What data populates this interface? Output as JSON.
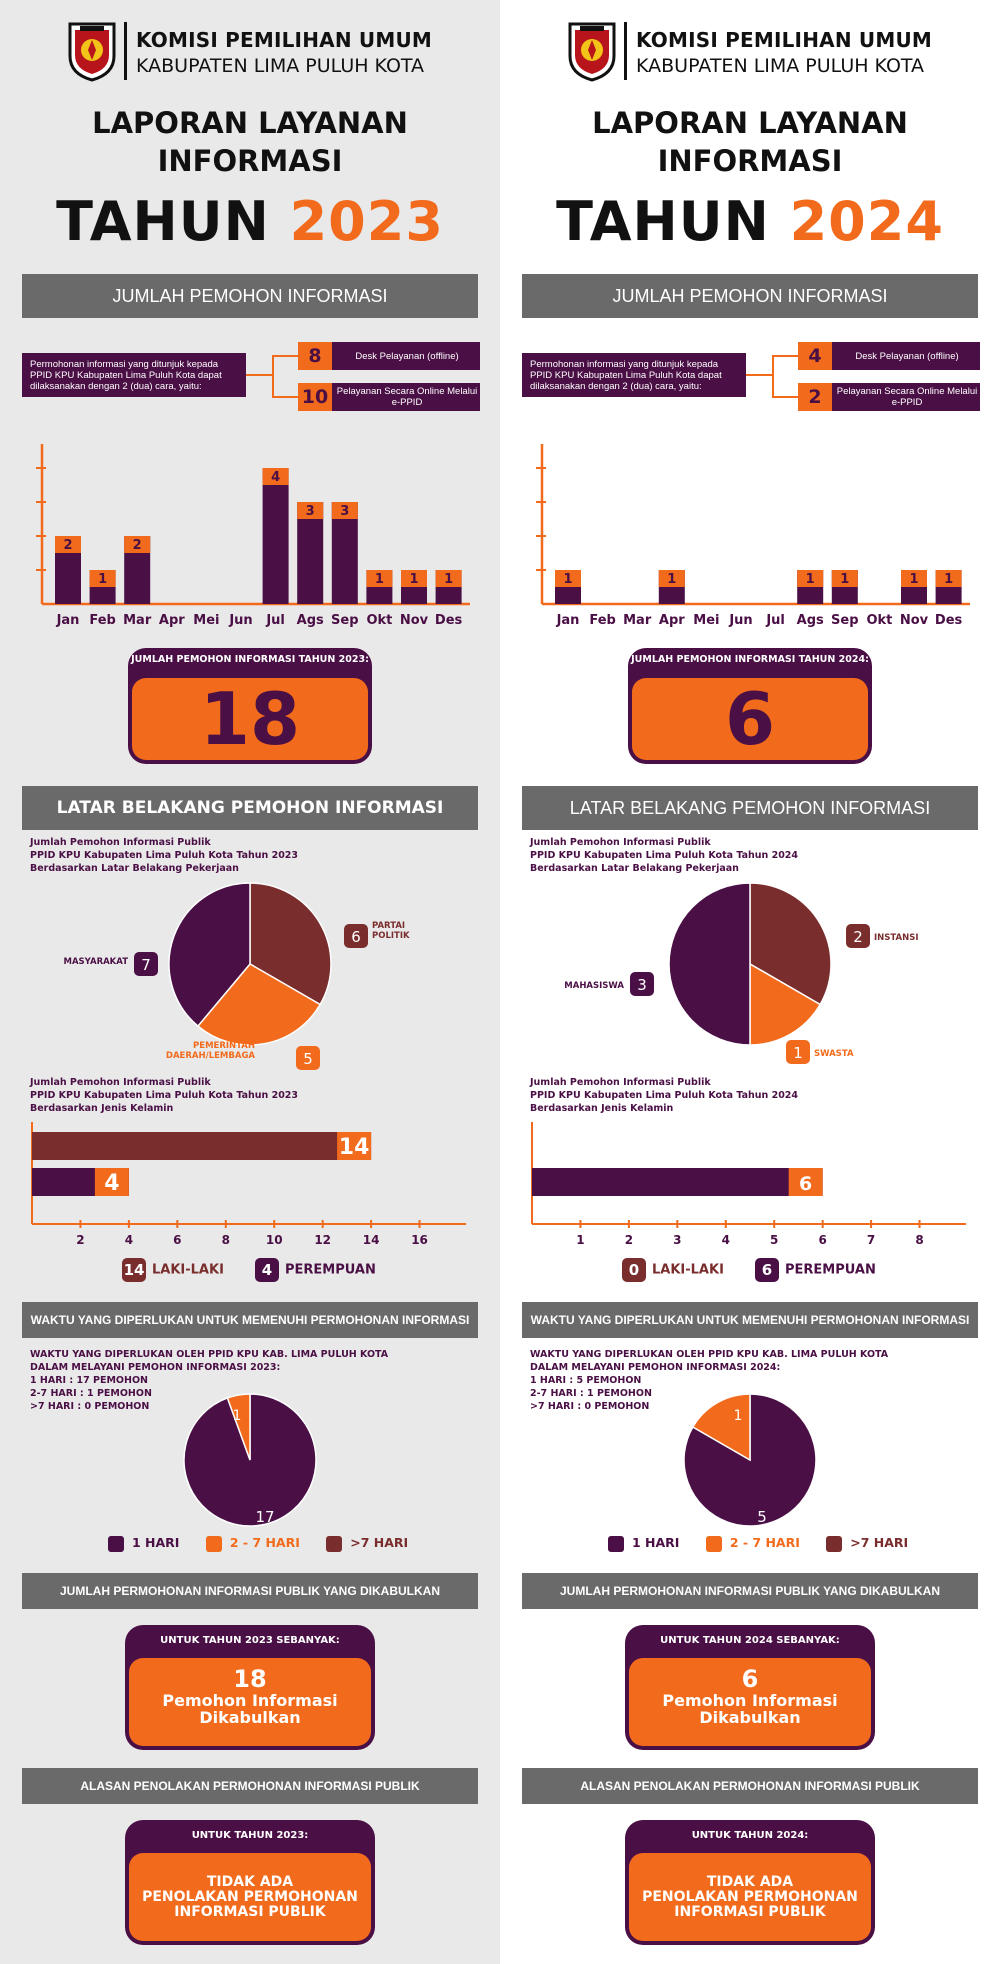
{
  "colors": {
    "purple": "#4a0f45",
    "orange": "#f26a1b",
    "brown": "#7a2d2d",
    "grey_band": "#6a6a6a"
  },
  "panels": [
    {
      "org_line1": "KOMISI PEMILIHAN UMUM",
      "org_line2": "KABUPATEN LIMA PULUH KOTA",
      "title_line1": "LAPORAN LAYANAN",
      "title_line2": "INFORMASI",
      "year_prefix": "TAHUN",
      "year": "2023",
      "section_requests": "JUMLAH PEMOHON INFORMASI",
      "request_text": "Permohonan informasi yang ditunjuk kepada PPID KPU Kabupaten Lima Puluh Kota dapat dilaksanakan dengan 2 (dua) cara, yaitu:",
      "channels": [
        {
          "value": "8",
          "label": "Desk Pelayanan (offline)"
        },
        {
          "value": "10",
          "label": "Pelayanan Secara Online Melalui e-PPID"
        }
      ],
      "total_caption": "JUMLAH PEMOHON INFORMASI TAHUN 2023:",
      "total_value": "18",
      "section_background": "LATAR BELAKANG PEMOHON INFORMASI",
      "occupation_title": "Jumlah Pemohon Informasi Publik\nPPID KPU Kabupaten Lima Puluh Kota Tahun 2023\nBerdasarkan Latar Belakang Pekerjaan",
      "gender_title": "Jumlah Pemohon Informasi Publik\nPPID KPU Kabupaten Lima Puluh Kota Tahun 2023\nBerdasarkan Jenis Kelamin",
      "gender_legend": [
        {
          "value": "14",
          "label": "LAKI-LAKI"
        },
        {
          "value": "4",
          "label": "PEREMPUAN"
        }
      ],
      "section_time": "WAKTU YANG DIPERLUKAN UNTUK MEMENUHI PERMOHONAN INFORMASI",
      "time_text": "WAKTU YANG DIPERLUKAN OLEH PPID KPU KAB. LIMA PULUH KOTA\nDALAM MELAYANI PEMOHON INFORMASI 2023:\n1 HARI : 17 PEMOHON\n2-7 HARI : 1 PEMOHON\n>7 HARI : 0 PEMOHON",
      "time_legend": [
        "1 HARI",
        "2 - 7 HARI",
        ">7 HARI"
      ],
      "section_granted": "JUMLAH PERMOHONAN INFORMASI PUBLIK YANG DIKABULKAN",
      "granted_caption": "UNTUK TAHUN 2023 SEBANYAK:",
      "granted_value": "18",
      "granted_text": "Pemohon Informasi\nDikabulkan",
      "section_rejection": "ALASAN PENOLAKAN PERMOHONAN INFORMASI PUBLIK",
      "rejection_caption": "UNTUK TAHUN 2023:",
      "rejection_text": "TIDAK ADA\nPENOLAKAN PERMOHONAN\nINFORMASI PUBLIK"
    },
    {
      "org_line1": "KOMISI PEMILIHAN UMUM",
      "org_line2": "KABUPATEN LIMA PULUH KOTA",
      "title_line1": "LAPORAN LAYANAN",
      "title_line2": "INFORMASI",
      "year_prefix": "TAHUN",
      "year": "2024",
      "section_requests": "JUMLAH PEMOHON INFORMASI",
      "request_text": "Permohonan informasi yang ditunjuk kepada PPID KPU Kabupaten Lima Puluh Kota dapat dilaksanakan dengan 2 (dua) cara, yaitu:",
      "channels": [
        {
          "value": "4",
          "label": "Desk Pelayanan (offline)"
        },
        {
          "value": "2",
          "label": "Pelayanan Secara Online Melalui e-PPID"
        }
      ],
      "total_caption": "JUMLAH PEMOHON INFORMASI TAHUN 2024:",
      "total_value": "6",
      "section_background": "LATAR BELAKANG PEMOHON INFORMASI",
      "occupation_title": "Jumlah Pemohon Informasi Publik\nPPID KPU Kabupaten Lima Puluh Kota Tahun 2024\nBerdasarkan Latar Belakang Pekerjaan",
      "gender_title": "Jumlah Pemohon Informasi Publik\nPPID KPU Kabupaten Lima Puluh Kota Tahun 2024\nBerdasarkan Jenis Kelamin",
      "gender_legend": [
        {
          "value": "0",
          "label": "LAKI-LAKI"
        },
        {
          "value": "6",
          "label": "PEREMPUAN"
        }
      ],
      "section_time": "WAKTU YANG DIPERLUKAN UNTUK MEMENUHI PERMOHONAN INFORMASI",
      "time_text": "WAKTU YANG DIPERLUKAN OLEH PPID KPU KAB. LIMA PULUH KOTA\nDALAM MELAYANI PEMOHON INFORMASI 2024:\n1 HARI : 5 PEMOHON\n2-7 HARI : 1 PEMOHON\n>7 HARI : 0 PEMOHON",
      "time_legend": [
        "1 HARI",
        "2 - 7 HARI",
        ">7 HARI"
      ],
      "section_granted": "JUMLAH PERMOHONAN INFORMASI PUBLIK YANG DIKABULKAN",
      "granted_caption": "UNTUK TAHUN 2024 SEBANYAK:",
      "granted_value": "6",
      "granted_text": "Pemohon Informasi\nDikabulkan",
      "section_rejection": "ALASAN PENOLAKAN PERMOHONAN INFORMASI PUBLIK",
      "rejection_caption": "UNTUK TAHUN 2024:",
      "rejection_text": "TIDAK ADA\nPENOLAKAN PERMOHONAN\nINFORMASI PUBLIK"
    }
  ],
  "chart_data": [
    {
      "type": "bar",
      "panel": 0,
      "title": "",
      "categories": [
        "Jan",
        "Feb",
        "Mar",
        "Apr",
        "Mei",
        "Jun",
        "Jul",
        "Ags",
        "Sep",
        "Okt",
        "Nov",
        "Des"
      ],
      "values": [
        2,
        1,
        2,
        0,
        0,
        0,
        4,
        3,
        3,
        1,
        1,
        1
      ],
      "ylim": [
        0,
        5
      ],
      "grid": false
    },
    {
      "type": "bar",
      "panel": 1,
      "title": "",
      "categories": [
        "Jan",
        "Feb",
        "Mar",
        "Apr",
        "Mei",
        "Jun",
        "Jul",
        "Ags",
        "Sep",
        "Okt",
        "Nov",
        "Des"
      ],
      "values": [
        1,
        0,
        0,
        1,
        0,
        0,
        0,
        1,
        1,
        0,
        1,
        1
      ],
      "ylim": [
        0,
        5
      ],
      "grid": false
    },
    {
      "type": "pie",
      "panel": 0,
      "categories": [
        "PARTAI POLITIK",
        "PEMERINTAH DAERAH/LEMBAGA",
        "MASYARAKAT"
      ],
      "values": [
        6,
        5,
        7
      ],
      "colors": [
        "#7a2d2d",
        "#f26a1b",
        "#4a0f45"
      ]
    },
    {
      "type": "pie",
      "panel": 1,
      "categories": [
        "INSTANSI",
        "SWASTA",
        "MAHASISWA"
      ],
      "values": [
        2,
        1,
        3
      ],
      "colors": [
        "#7a2d2d",
        "#f26a1b",
        "#4a0f45"
      ]
    },
    {
      "type": "bar",
      "orientation": "horizontal",
      "panel": 0,
      "categories": [
        "LAKI-LAKI",
        "PEREMPUAN"
      ],
      "values": [
        14,
        4
      ],
      "xticks": [
        2,
        4,
        6,
        8,
        10,
        12,
        14,
        16
      ],
      "xlim": [
        0,
        18
      ]
    },
    {
      "type": "bar",
      "orientation": "horizontal",
      "panel": 1,
      "categories": [
        "PEREMPUAN"
      ],
      "values": [
        6
      ],
      "xticks": [
        1,
        2,
        3,
        4,
        5,
        6,
        7,
        8
      ],
      "xlim": [
        0,
        9
      ]
    },
    {
      "type": "pie",
      "panel": 0,
      "categories": [
        "1 HARI",
        "2 - 7 HARI",
        ">7 HARI"
      ],
      "values": [
        17,
        1,
        0
      ],
      "colors": [
        "#4a0f45",
        "#f26a1b",
        "#7a2d2d"
      ]
    },
    {
      "type": "pie",
      "panel": 1,
      "categories": [
        "1 HARI",
        "2 - 7 HARI",
        ">7 HARI"
      ],
      "values": [
        5,
        1,
        0
      ],
      "colors": [
        "#4a0f45",
        "#f26a1b",
        "#7a2d2d"
      ]
    }
  ]
}
